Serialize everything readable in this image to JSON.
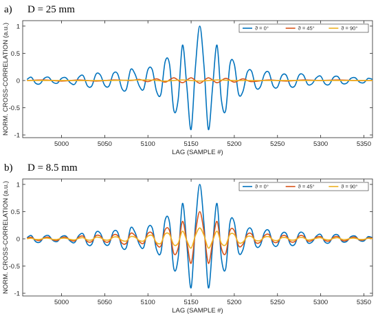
{
  "colors": {
    "blue": "#0072BD",
    "orange": "#D95319",
    "yellow": "#EDB120"
  },
  "chart_data": [
    {
      "panel": "a)",
      "title": "D = 25 mm",
      "type": "line",
      "xlabel": "LAG (SAMPLE #)",
      "ylabel": "NORM. CROSS-CORRELATION (a.u.)",
      "xlim": [
        4955,
        5360
      ],
      "ylim": [
        -1.05,
        1.1
      ],
      "xticks": [
        5000,
        5050,
        5100,
        5150,
        5200,
        5250,
        5300,
        5350
      ],
      "yticks": [
        -1,
        -0.5,
        0,
        0.5,
        1
      ],
      "grid": false,
      "legend_position": "top-right",
      "center": 5160,
      "series": [
        {
          "name": "ϑ = 0°",
          "color": "#0072BD",
          "x": [
            4960,
            4965,
            4970,
            4975,
            4980,
            4985,
            4990,
            4995,
            5000,
            5005,
            5010,
            5015,
            5020,
            5025,
            5030,
            5035,
            5040,
            5045,
            5050,
            5055,
            5060,
            5065,
            5070,
            5075,
            5080,
            5085,
            5090,
            5095,
            5100,
            5105,
            5110,
            5115,
            5120,
            5125,
            5130,
            5135,
            5140,
            5145,
            5150,
            5155,
            5160,
            5165,
            5170,
            5175,
            5180,
            5185,
            5190,
            5195,
            5200,
            5205,
            5210,
            5215,
            5220,
            5225,
            5230,
            5235,
            5240,
            5245,
            5250,
            5255,
            5260,
            5265,
            5270,
            5275,
            5280,
            5285,
            5290,
            5295,
            5300,
            5305,
            5310,
            5315,
            5320,
            5325,
            5330,
            5335,
            5340,
            5345,
            5350,
            5355,
            5360
          ],
          "y": [
            0.02,
            0.06,
            -0.05,
            -0.06,
            0.04,
            0.06,
            -0.03,
            -0.05,
            0.04,
            0.05,
            -0.04,
            -0.07,
            0.06,
            0.09,
            -0.1,
            -0.1,
            0.12,
            0.1,
            -0.09,
            -0.1,
            0.13,
            0.12,
            -0.15,
            -0.16,
            0.2,
            0.12,
            -0.1,
            -0.16,
            0.2,
            0.2,
            -0.2,
            -0.25,
            0.35,
            0.3,
            -0.55,
            -0.35,
            0.65,
            -0.1,
            -0.9,
            0.25,
            1.0,
            0.25,
            -0.9,
            -0.1,
            0.65,
            -0.35,
            -0.55,
            0.3,
            0.3,
            -0.25,
            -0.2,
            0.15,
            0.17,
            -0.13,
            -0.12,
            0.12,
            0.15,
            -0.1,
            -0.12,
            0.09,
            0.1,
            -0.1,
            -0.1,
            0.1,
            0.1,
            -0.07,
            -0.06,
            0.05,
            0.08,
            -0.06,
            -0.07,
            0.06,
            0.07,
            -0.05,
            -0.05,
            0.04,
            0.05,
            -0.03,
            -0.04,
            0.04,
            0.02
          ]
        },
        {
          "name": "ϑ = 45°",
          "color": "#D95319",
          "x": [
            4960,
            4980,
            5000,
            5020,
            5040,
            5060,
            5080,
            5090,
            5100,
            5110,
            5120,
            5130,
            5140,
            5150,
            5160,
            5170,
            5180,
            5190,
            5200,
            5210,
            5220,
            5240,
            5260,
            5280,
            5300,
            5320,
            5340,
            5360
          ],
          "y": [
            0.0,
            0.01,
            -0.01,
            0.01,
            -0.01,
            0.01,
            0.0,
            0.02,
            -0.02,
            0.03,
            -0.03,
            0.05,
            -0.04,
            0.05,
            -0.05,
            0.05,
            -0.04,
            0.04,
            -0.03,
            0.03,
            -0.02,
            0.01,
            -0.01,
            0.01,
            0.0,
            0.01,
            0.0,
            0.0
          ]
        },
        {
          "name": "ϑ = 90°",
          "color": "#EDB120",
          "x": [
            4960,
            5000,
            5050,
            5100,
            5120,
            5140,
            5160,
            5180,
            5200,
            5250,
            5300,
            5360
          ],
          "y": [
            0.0,
            0.0,
            0.0,
            0.01,
            -0.01,
            0.01,
            -0.01,
            0.01,
            0.0,
            0.0,
            0.0,
            0.0
          ]
        }
      ]
    },
    {
      "panel": "b)",
      "title": "D = 8.5 mm",
      "type": "line",
      "xlabel": "LAG (SAMPLE #)",
      "ylabel": "NORM. CROSS-CORRELATION (a.u.)",
      "xlim": [
        4955,
        5360
      ],
      "ylim": [
        -1.05,
        1.1
      ],
      "xticks": [
        5000,
        5050,
        5100,
        5150,
        5200,
        5250,
        5300,
        5350
      ],
      "yticks": [
        -1,
        -0.5,
        0,
        0.5,
        1
      ],
      "grid": false,
      "legend_position": "top-right",
      "center": 5160,
      "series": [
        {
          "name": "ϑ = 0°",
          "color": "#0072BD",
          "x": [
            4960,
            4965,
            4970,
            4975,
            4980,
            4985,
            4990,
            4995,
            5000,
            5005,
            5010,
            5015,
            5020,
            5025,
            5030,
            5035,
            5040,
            5045,
            5050,
            5055,
            5060,
            5065,
            5070,
            5075,
            5080,
            5085,
            5090,
            5095,
            5100,
            5105,
            5110,
            5115,
            5120,
            5125,
            5130,
            5135,
            5140,
            5145,
            5150,
            5155,
            5160,
            5165,
            5170,
            5175,
            5180,
            5185,
            5190,
            5195,
            5200,
            5205,
            5210,
            5215,
            5220,
            5225,
            5230,
            5235,
            5240,
            5245,
            5250,
            5255,
            5260,
            5265,
            5270,
            5275,
            5280,
            5285,
            5290,
            5295,
            5300,
            5305,
            5310,
            5315,
            5320,
            5325,
            5330,
            5335,
            5340,
            5345,
            5350,
            5355,
            5360
          ],
          "y": [
            0.02,
            0.06,
            -0.05,
            -0.06,
            0.04,
            0.06,
            -0.03,
            -0.05,
            0.04,
            0.05,
            -0.04,
            -0.07,
            0.06,
            0.09,
            -0.1,
            -0.1,
            0.12,
            0.1,
            -0.09,
            -0.1,
            0.13,
            0.12,
            -0.15,
            -0.16,
            0.2,
            0.12,
            -0.1,
            -0.16,
            0.2,
            0.2,
            -0.2,
            -0.25,
            0.35,
            0.3,
            -0.55,
            -0.35,
            0.65,
            -0.1,
            -0.9,
            0.25,
            1.0,
            0.25,
            -0.9,
            -0.1,
            0.65,
            -0.35,
            -0.55,
            0.3,
            0.3,
            -0.25,
            -0.2,
            0.15,
            0.17,
            -0.13,
            -0.12,
            0.12,
            0.15,
            -0.1,
            -0.12,
            0.09,
            0.1,
            -0.1,
            -0.1,
            0.1,
            0.1,
            -0.07,
            -0.06,
            0.05,
            0.08,
            -0.06,
            -0.07,
            0.06,
            0.07,
            -0.05,
            -0.05,
            0.04,
            0.05,
            -0.03,
            -0.04,
            0.04,
            0.02
          ]
        },
        {
          "name": "ϑ = 45°",
          "color": "#D95319",
          "x": [
            4960,
            4965,
            4970,
            4975,
            4980,
            4985,
            4990,
            4995,
            5000,
            5005,
            5010,
            5015,
            5020,
            5025,
            5030,
            5035,
            5040,
            5045,
            5050,
            5055,
            5060,
            5065,
            5070,
            5075,
            5080,
            5085,
            5090,
            5095,
            5100,
            5105,
            5110,
            5115,
            5120,
            5125,
            5130,
            5135,
            5140,
            5145,
            5150,
            5155,
            5160,
            5165,
            5170,
            5175,
            5180,
            5185,
            5190,
            5195,
            5200,
            5205,
            5210,
            5215,
            5220,
            5225,
            5230,
            5235,
            5240,
            5245,
            5250,
            5255,
            5260,
            5265,
            5270,
            5275,
            5280,
            5285,
            5290,
            5295,
            5300,
            5305,
            5310,
            5315,
            5320,
            5325,
            5330,
            5335,
            5340,
            5345,
            5350,
            5355,
            5360
          ],
          "y": [
            0.01,
            0.03,
            -0.02,
            -0.03,
            0.02,
            0.03,
            -0.02,
            -0.03,
            0.02,
            0.03,
            -0.02,
            -0.04,
            0.03,
            0.05,
            -0.05,
            -0.05,
            0.06,
            0.05,
            -0.05,
            -0.05,
            0.07,
            0.06,
            -0.08,
            -0.08,
            0.1,
            0.06,
            -0.05,
            -0.08,
            0.1,
            0.1,
            -0.1,
            -0.13,
            0.17,
            0.15,
            -0.27,
            -0.17,
            0.32,
            -0.05,
            -0.45,
            0.12,
            0.5,
            0.12,
            -0.45,
            -0.05,
            0.32,
            -0.17,
            -0.27,
            0.15,
            0.15,
            -0.13,
            -0.1,
            0.08,
            0.09,
            -0.07,
            -0.06,
            0.06,
            0.08,
            -0.05,
            -0.06,
            0.05,
            0.05,
            -0.05,
            -0.05,
            0.05,
            0.05,
            -0.04,
            -0.03,
            0.03,
            0.04,
            -0.03,
            -0.04,
            0.03,
            0.04,
            -0.03,
            -0.03,
            0.02,
            0.03,
            -0.02,
            -0.02,
            0.02,
            0.01
          ]
        },
        {
          "name": "ϑ = 90°",
          "color": "#EDB120",
          "x": [
            4960,
            4965,
            4970,
            4975,
            4980,
            4985,
            4990,
            4995,
            5000,
            5005,
            5010,
            5015,
            5020,
            5025,
            5030,
            5035,
            5040,
            5045,
            5050,
            5055,
            5060,
            5065,
            5070,
            5075,
            5080,
            5085,
            5090,
            5095,
            5100,
            5105,
            5110,
            5115,
            5120,
            5125,
            5130,
            5135,
            5140,
            5145,
            5150,
            5155,
            5160,
            5165,
            5170,
            5175,
            5180,
            5185,
            5190,
            5195,
            5200,
            5205,
            5210,
            5215,
            5220,
            5225,
            5230,
            5235,
            5240,
            5245,
            5250,
            5255,
            5260,
            5265,
            5270,
            5275,
            5280,
            5285,
            5290,
            5295,
            5300,
            5305,
            5310,
            5315,
            5320,
            5325,
            5330,
            5335,
            5340,
            5345,
            5350,
            5355,
            5360
          ],
          "y": [
            0.0,
            0.01,
            -0.01,
            -0.01,
            0.01,
            0.01,
            -0.01,
            -0.01,
            0.01,
            0.01,
            -0.01,
            -0.02,
            0.01,
            0.02,
            -0.02,
            -0.02,
            0.03,
            0.02,
            -0.02,
            -0.02,
            0.03,
            0.03,
            -0.03,
            -0.04,
            0.04,
            0.03,
            -0.03,
            -0.04,
            0.05,
            0.06,
            -0.07,
            -0.08,
            0.09,
            0.08,
            -0.11,
            -0.08,
            0.14,
            -0.03,
            -0.17,
            0.06,
            0.2,
            0.06,
            -0.17,
            -0.03,
            0.14,
            -0.08,
            -0.11,
            0.08,
            0.08,
            -0.07,
            -0.06,
            0.04,
            0.04,
            -0.03,
            -0.03,
            0.03,
            0.04,
            -0.02,
            -0.03,
            0.02,
            0.02,
            -0.02,
            -0.02,
            0.02,
            0.02,
            -0.02,
            -0.01,
            0.01,
            0.02,
            -0.01,
            -0.02,
            0.01,
            0.02,
            -0.01,
            -0.01,
            0.01,
            0.01,
            -0.01,
            -0.01,
            0.01,
            0.0
          ]
        }
      ]
    }
  ]
}
